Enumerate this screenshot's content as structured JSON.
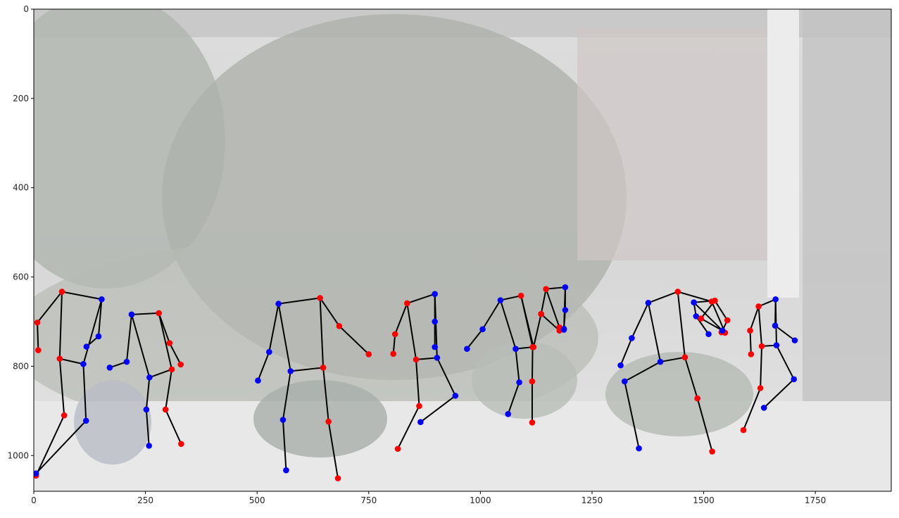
{
  "chart_data": {
    "type": "scatter",
    "title": "",
    "xlabel": "",
    "ylabel": "",
    "xlim": [
      0,
      1920
    ],
    "ylim": [
      1080,
      0
    ],
    "y_inverted": true,
    "grid": false,
    "xticks": [
      "0",
      "250",
      "500",
      "750",
      "1000",
      "1250",
      "1500",
      "1750"
    ],
    "yticks": [
      "0",
      "200",
      "400",
      "600",
      "800",
      "1000"
    ],
    "background": "washed-out photo of folk dancers on an outdoor stage with trees and building behind",
    "colors": {
      "right_side": "#ff0000",
      "left_side": "#0000ff",
      "bone": "#000000"
    },
    "skeletons": [
      {
        "joints": {
          "r_sh": [
            63,
            633
          ],
          "l_sh": [
            152,
            650
          ],
          "r_el": [
            8,
            702
          ],
          "r_wr": [
            10,
            764
          ],
          "l_el": [
            145,
            733
          ],
          "l_wr": [
            118,
            756
          ],
          "r_hip": [
            58,
            783
          ],
          "l_hip": [
            111,
            795
          ],
          "r_kn": [
            68,
            910
          ],
          "l_kn": [
            117,
            922
          ],
          "r_an": [
            5,
            1045
          ],
          "l_an": [
            5,
            1040
          ]
        }
      },
      {
        "joints": {
          "r_sh": [
            280,
            681
          ],
          "l_sh": [
            219,
            684
          ],
          "r_el": [
            304,
            748
          ],
          "r_wr": [
            329,
            796
          ],
          "l_el": [
            208,
            790
          ],
          "l_wr": [
            170,
            803
          ],
          "r_hip": [
            309,
            807
          ],
          "l_hip": [
            259,
            825
          ],
          "r_kn": [
            295,
            897
          ],
          "l_kn": [
            252,
            897
          ],
          "r_an": [
            330,
            974
          ],
          "l_an": [
            258,
            978
          ]
        }
      },
      {
        "joints": {
          "r_sh": [
            641,
            647
          ],
          "l_sh": [
            548,
            660
          ],
          "r_el": [
            684,
            710
          ],
          "r_wr": [
            750,
            773
          ],
          "l_el": [
            527,
            768
          ],
          "l_wr": [
            502,
            832
          ],
          "r_hip": [
            648,
            803
          ],
          "l_hip": [
            575,
            811
          ],
          "r_kn": [
            660,
            924
          ],
          "l_kn": [
            558,
            920
          ],
          "r_an": [
            681,
            1051
          ],
          "l_an": [
            565,
            1033
          ]
        }
      },
      {
        "joints": {
          "r_sh": [
            836,
            659
          ],
          "l_sh": [
            898,
            638
          ],
          "r_el": [
            809,
            728
          ],
          "r_wr": [
            805,
            772
          ],
          "l_el": [
            898,
            700
          ],
          "l_wr": [
            898,
            757
          ],
          "r_hip": [
            856,
            785
          ],
          "l_hip": [
            903,
            781
          ],
          "r_kn": [
            863,
            889
          ],
          "l_kn": [
            944,
            866
          ],
          "r_an": [
            815,
            985
          ],
          "l_an": [
            866,
            925
          ]
        }
      },
      {
        "joints": {
          "r_sh": [
            1091,
            642
          ],
          "l_sh": [
            1045,
            652
          ],
          "r_el": [
            1119,
            757
          ],
          "r_wr": [
            1136,
            683
          ],
          "l_el": [
            1005,
            717
          ],
          "l_wr": [
            970,
            761
          ],
          "r_hip": [
            1117,
            757
          ],
          "l_hip": [
            1079,
            761
          ],
          "r_kn": [
            1116,
            834
          ],
          "l_kn": [
            1087,
            836
          ],
          "r_an": [
            1116,
            926
          ],
          "l_an": [
            1062,
            907
          ]
        }
      },
      {
        "joints": {
          "r_sh": [
            1147,
            627
          ],
          "l_sh": [
            1190,
            623
          ],
          "r_el": [
            1136,
            683
          ],
          "r_wr": [
            1177,
            720
          ],
          "l_el": [
            1190,
            674
          ],
          "l_wr": [
            1187,
            716
          ],
          "r_hip": [
            1177,
            713
          ],
          "l_hip": [
            1187,
            718
          ],
          "r_kn": null,
          "l_kn": null,
          "r_an": null,
          "l_an": null
        }
      },
      {
        "joints": {
          "r_sh": [
            1442,
            633
          ],
          "l_sh": [
            1376,
            658
          ],
          "r_el": [
            1518,
            655
          ],
          "r_wr": [
            1548,
            725
          ],
          "l_el": [
            1339,
            737
          ],
          "l_wr": [
            1314,
            798
          ],
          "r_hip": [
            1458,
            780
          ],
          "l_hip": [
            1403,
            790
          ],
          "r_kn": [
            1486,
            872
          ],
          "l_kn": [
            1323,
            834
          ],
          "r_an": [
            1519,
            991
          ],
          "l_an": [
            1355,
            984
          ]
        }
      },
      {
        "joints": {
          "r_sh": [
            1525,
            653
          ],
          "l_sh": [
            1478,
            657
          ],
          "r_el": [
            1553,
            697
          ],
          "r_wr": [
            1540,
            724
          ],
          "l_el": [
            1483,
            688
          ],
          "l_wr": [
            1511,
            728
          ],
          "r_hip": [
            1494,
            693
          ],
          "l_hip": [
            1542,
            720
          ],
          "r_kn": null,
          "l_kn": null,
          "r_an": null,
          "l_an": null
        }
      },
      {
        "joints": {
          "r_sh": [
            1623,
            666
          ],
          "l_sh": [
            1661,
            650
          ],
          "r_el": [
            1604,
            720
          ],
          "r_wr": [
            1606,
            773
          ],
          "l_el": [
            1660,
            709
          ],
          "l_wr": [
            1704,
            742
          ],
          "r_hip": [
            1630,
            755
          ],
          "l_hip": [
            1663,
            753
          ],
          "r_kn": [
            1627,
            849
          ],
          "l_kn": [
            1702,
            829
          ],
          "r_an": [
            1589,
            943
          ],
          "l_an": [
            1635,
            893
          ]
        }
      }
    ]
  }
}
